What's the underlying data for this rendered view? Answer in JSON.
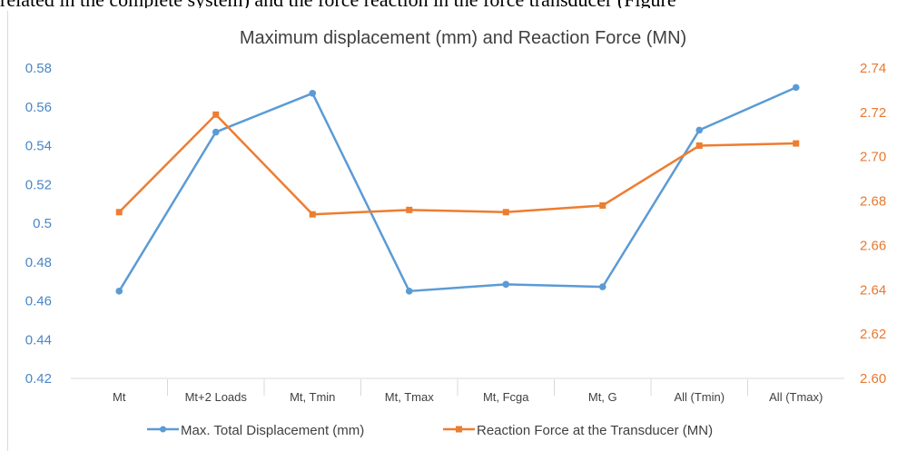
{
  "caption": "related in the complete system) and the force reaction in the force transducer (Figure",
  "chart_data": {
    "type": "line",
    "title": "Maximum displacement (mm) and Reaction Force (MN)",
    "categories": [
      "Mt",
      "Mt+2 Loads",
      "Mt, Tmin",
      "Mt, Tmax",
      "Mt, Fcga",
      "Mt, G",
      "All (Tmin)",
      "All (Tmax)"
    ],
    "y_left": {
      "min": 0.42,
      "max": 0.58,
      "ticks": [
        "0.58",
        "0.56",
        "0.54",
        "0.52",
        "0.5",
        "0.48",
        "0.46",
        "0.44",
        "0.42"
      ]
    },
    "y_right": {
      "min": 2.6,
      "max": 2.74,
      "ticks": [
        "2.74",
        "2.72",
        "2.70",
        "2.68",
        "2.66",
        "2.64",
        "2.62",
        "2.60"
      ]
    },
    "grid": false,
    "legend_position": "bottom",
    "series": [
      {
        "name": "Max. Total Displacement (mm)",
        "axis": "left",
        "color": "#5b9bd5",
        "values": [
          0.465,
          0.547,
          0.567,
          0.465,
          0.4685,
          0.4672,
          0.548,
          0.57
        ]
      },
      {
        "name": "Reaction Force at the Transducer (MN)",
        "axis": "right",
        "color": "#ed7d31",
        "values": [
          2.675,
          2.719,
          2.674,
          2.676,
          2.675,
          2.678,
          2.705,
          2.706
        ]
      }
    ]
  }
}
